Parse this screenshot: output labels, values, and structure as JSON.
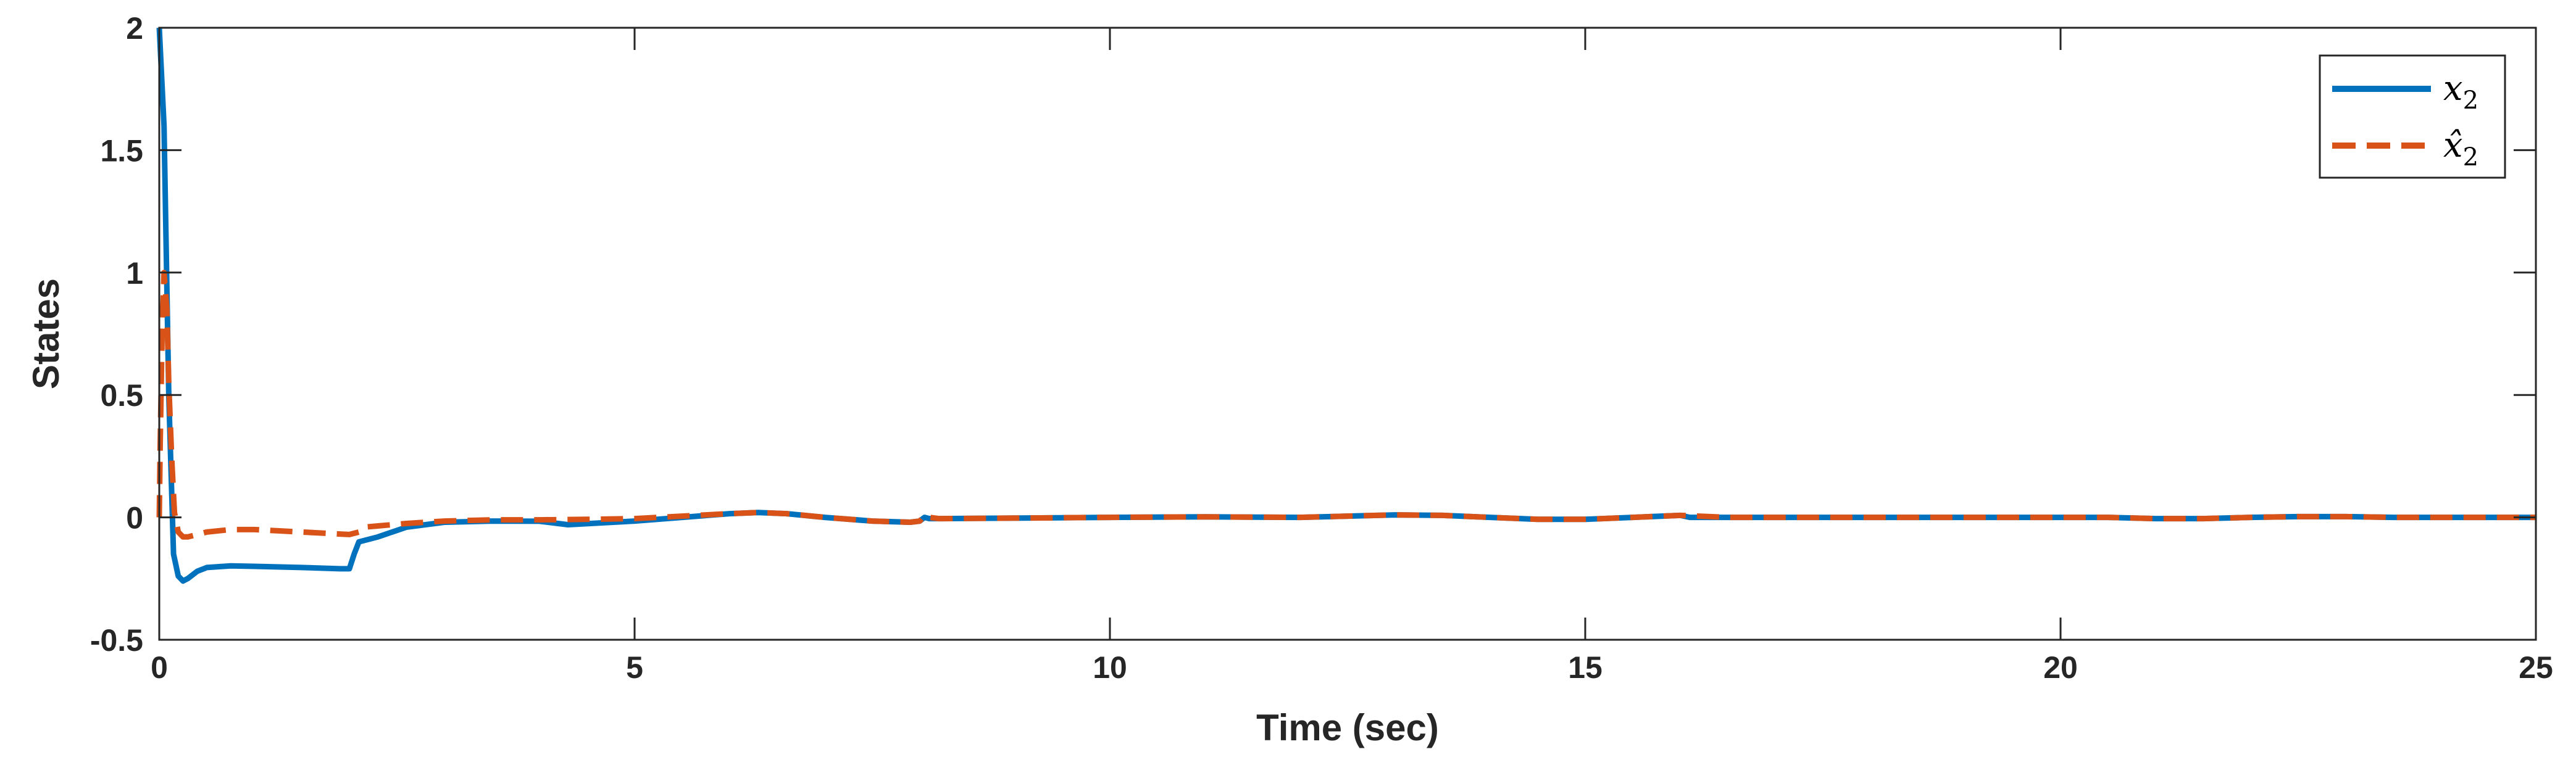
{
  "chart_data": {
    "type": "line",
    "title": "",
    "xlabel": "Time (sec)",
    "ylabel": "States",
    "xlim": [
      0,
      25
    ],
    "ylim": [
      -0.5,
      2
    ],
    "xticks": [
      0,
      5,
      10,
      15,
      20,
      25
    ],
    "xtick_labels": [
      "0",
      "5",
      "10",
      "15",
      "20",
      "25"
    ],
    "yticks": [
      -0.5,
      0,
      0.5,
      1,
      1.5,
      2
    ],
    "ytick_labels": [
      "-0.5",
      "0",
      "0.5",
      "1",
      "1.5",
      "2"
    ],
    "grid": false,
    "legend_position": "top-right",
    "series": [
      {
        "name": "x2",
        "legend_main": "x",
        "legend_sub": "2",
        "color": "#0072BD",
        "style": "solid",
        "x": [
          0,
          0.05,
          0.1,
          0.15,
          0.2,
          0.25,
          0.3,
          0.4,
          0.5,
          0.75,
          1.0,
          1.5,
          1.9,
          2.0,
          2.05,
          2.1,
          2.3,
          2.6,
          3.0,
          3.5,
          4.0,
          4.3,
          5.0,
          5.5,
          6.0,
          6.3,
          6.6,
          7.0,
          7.5,
          7.9,
          8.0,
          8.05,
          8.1,
          8.2,
          9.0,
          10.0,
          11.0,
          12.0,
          12.5,
          13.0,
          13.5,
          14.0,
          14.5,
          15.0,
          15.5,
          16.0,
          16.1,
          16.5,
          17.0,
          18.0,
          19.0,
          20.0,
          20.5,
          21.0,
          21.5,
          22.0,
          22.5,
          23.0,
          23.5,
          24.0,
          24.5,
          25.0
        ],
        "values": [
          2.0,
          1.6,
          0.5,
          -0.15,
          -0.24,
          -0.26,
          -0.25,
          -0.22,
          -0.205,
          -0.198,
          -0.2,
          -0.205,
          -0.21,
          -0.21,
          -0.15,
          -0.1,
          -0.08,
          -0.04,
          -0.02,
          -0.015,
          -0.016,
          -0.03,
          -0.015,
          0.0,
          0.015,
          0.02,
          0.015,
          0.0,
          -0.015,
          -0.02,
          -0.015,
          0.0,
          -0.005,
          -0.005,
          -0.003,
          0.0,
          0.002,
          0.0,
          0.005,
          0.01,
          0.008,
          0.0,
          -0.008,
          -0.008,
          0.0,
          0.008,
          0.0,
          0.0,
          0.0,
          0.0,
          0.0,
          0.0,
          0.0,
          -0.005,
          -0.005,
          0.0,
          0.003,
          0.003,
          0.0,
          0.0,
          0.0,
          0.0
        ]
      },
      {
        "name": "x2 hat",
        "legend_main": "x̂",
        "legend_sub": "2",
        "color": "#D95319",
        "style": "dashed",
        "x": [
          0,
          0.01,
          0.03,
          0.05,
          0.08,
          0.1,
          0.13,
          0.16,
          0.2,
          0.25,
          0.3,
          0.4,
          0.5,
          0.75,
          1.0,
          1.25,
          1.5,
          1.75,
          2.0,
          2.1,
          2.15,
          2.3,
          2.6,
          3.0,
          3.5,
          4.0,
          4.5,
          5.0,
          5.5,
          6.0,
          6.3,
          6.6,
          7.0,
          7.5,
          7.9,
          8.0,
          8.05,
          8.1,
          8.2,
          9.0,
          10.0,
          11.0,
          12.0,
          12.5,
          13.0,
          13.5,
          14.0,
          14.5,
          15.0,
          15.5,
          16.0,
          16.5,
          17.0,
          18.0,
          19.0,
          20.0,
          20.5,
          21.0,
          21.5,
          22.0,
          22.5,
          23.0,
          23.5,
          24.0,
          24.5,
          25.0
        ],
        "values": [
          0.0,
          0.3,
          0.75,
          1.0,
          0.85,
          0.55,
          0.25,
          0.02,
          -0.06,
          -0.08,
          -0.08,
          -0.07,
          -0.06,
          -0.05,
          -0.05,
          -0.055,
          -0.06,
          -0.065,
          -0.07,
          -0.06,
          -0.04,
          -0.035,
          -0.025,
          -0.015,
          -0.01,
          -0.01,
          -0.008,
          -0.005,
          0.005,
          0.015,
          0.02,
          0.015,
          0.0,
          -0.015,
          -0.02,
          -0.015,
          0.008,
          0.0,
          -0.005,
          -0.003,
          0.0,
          0.002,
          0.0,
          0.005,
          0.01,
          0.008,
          0.0,
          -0.008,
          -0.008,
          0.0,
          0.008,
          0.0,
          0.0,
          0.0,
          0.0,
          0.0,
          0.0,
          -0.005,
          -0.005,
          0.0,
          0.003,
          0.003,
          0.0,
          0.0,
          0.0,
          0.0
        ]
      }
    ]
  }
}
